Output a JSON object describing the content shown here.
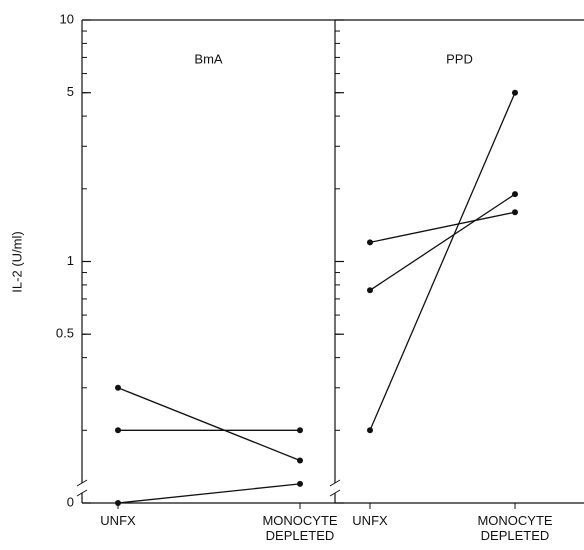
{
  "chart_data": [
    {
      "type": "line",
      "title": "BmA",
      "y_label": "IL-2 (U/ml)",
      "log_scale": true,
      "axis_break_at_zero": true,
      "categories": [
        "UNFX",
        "MONOCYTE DEPLETED"
      ],
      "ylim": [
        0.1,
        10
      ],
      "yticks": [
        0,
        0.5,
        1,
        5,
        10
      ],
      "color": "#111111",
      "series": [
        {
          "values": [
            0.3,
            0.15
          ]
        },
        {
          "values": [
            0.2,
            0.2
          ]
        },
        {
          "values": [
            0,
            0.12
          ]
        }
      ]
    },
    {
      "type": "line",
      "title": "PPD",
      "log_scale": true,
      "axis_break_at_zero": true,
      "categories": [
        "UNFX",
        "MONOCYTE DEPLETED"
      ],
      "ylim": [
        0.1,
        10
      ],
      "color": "#111111",
      "series": [
        {
          "values": [
            1.2,
            1.6
          ]
        },
        {
          "values": [
            0.76,
            1.9
          ]
        },
        {
          "values": [
            0.2,
            5
          ]
        }
      ]
    }
  ]
}
